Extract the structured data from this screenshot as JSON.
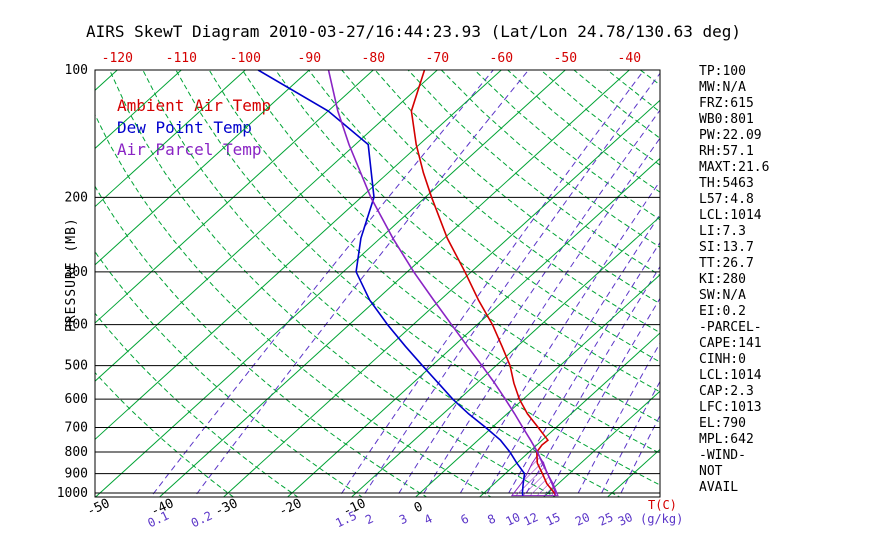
{
  "title": "AIRS SkewT Diagram 2010-03-27/16:44:23.93 (Lat/Lon 24.78/130.63 deg)",
  "legend": {
    "ambient": "Ambient Air Temp",
    "dew": "Dew Point Temp",
    "parcel": "Air Parcel Temp"
  },
  "ylabel": "PRESSURE (MB)",
  "xlabel_temp": "T(C)",
  "xlabel_ratio": "(g/kg)",
  "stats": {
    "lines": [
      "TP:100",
      "MW:N/A",
      "FRZ:615",
      "WB0:801",
      "PW:22.09",
      "RH:57.1",
      "MAXT:21.6",
      "TH:5463",
      "L57:4.8",
      "LCL:1014",
      "LI:7.3",
      "SI:13.7",
      "TT:26.7",
      "KI:280",
      "SW:N/A",
      "EI:0.2",
      "-PARCEL-",
      "CAPE:141",
      "CINH:0",
      "LCL:1014",
      "CAP:2.3",
      "LFC:1013",
      "EL:790",
      "MPL:642",
      "-WIND-",
      "NOT",
      "AVAIL"
    ]
  },
  "colors": {
    "red": "#d40000",
    "green": "#00a335",
    "blue": "#0000cc",
    "parcel": "#8a24c4",
    "mixing": "#5b35c8",
    "black": "#000000"
  },
  "chart_data": {
    "type": "line",
    "title": "AIRS SkewT Diagram 2010-03-27/16:44:23.93 (Lat/Lon 24.78/130.63 deg)",
    "xlabel": "T(C)",
    "ylabel": "PRESSURE (MB)",
    "y_axis": {
      "scale": "log",
      "ticks": [
        100,
        200,
        300,
        400,
        500,
        600,
        700,
        800,
        900,
        1000
      ],
      "range": [
        100,
        1022
      ]
    },
    "x_axis": {
      "top_ticks": [
        -120,
        -110,
        -100,
        -90,
        -80,
        -70,
        -60,
        -50,
        -40
      ],
      "bottom_ticks": [
        -50,
        -40,
        -30,
        -20,
        -10,
        0
      ]
    },
    "isotherms_c": {
      "min": -120,
      "max": 40,
      "step": 10
    },
    "dry_adiabats_c": {
      "min": -30,
      "max": 190,
      "step": 10
    },
    "mixing_ratio_lines_g_kg": [
      0.1,
      0.2,
      1.5,
      2,
      3,
      4,
      6,
      8,
      10,
      12,
      15,
      20,
      25,
      30
    ],
    "series": [
      {
        "name": "Ambient Air Temp",
        "color": "#d40000",
        "points": [
          [
            1014,
            21.6
          ],
          [
            1000,
            21.0
          ],
          [
            950,
            18.2
          ],
          [
            900,
            15.8
          ],
          [
            850,
            13.2
          ],
          [
            800,
            11.2
          ],
          [
            770,
            10.8
          ],
          [
            750,
            10.9
          ],
          [
            700,
            7.2
          ],
          [
            650,
            3.2
          ],
          [
            600,
            -0.6
          ],
          [
            550,
            -4.2
          ],
          [
            500,
            -7.8
          ],
          [
            450,
            -12.4
          ],
          [
            400,
            -17.6
          ],
          [
            350,
            -24.0
          ],
          [
            300,
            -31.0
          ],
          [
            250,
            -39.5
          ],
          [
            200,
            -49.0
          ],
          [
            175,
            -54.5
          ],
          [
            150,
            -60.5
          ],
          [
            125,
            -67.0
          ],
          [
            100,
            -72.0
          ]
        ]
      },
      {
        "name": "Dew Point Temp",
        "color": "#0000cc",
        "points": [
          [
            1014,
            16.5
          ],
          [
            1000,
            16.0
          ],
          [
            950,
            14.5
          ],
          [
            900,
            13.0
          ],
          [
            850,
            10.0
          ],
          [
            800,
            7.0
          ],
          [
            750,
            3.5
          ],
          [
            700,
            -1.0
          ],
          [
            650,
            -6.0
          ],
          [
            600,
            -11.0
          ],
          [
            550,
            -16.0
          ],
          [
            500,
            -21.5
          ],
          [
            450,
            -27.5
          ],
          [
            400,
            -34.0
          ],
          [
            350,
            -41.0
          ],
          [
            300,
            -48.0
          ],
          [
            250,
            -53.0
          ],
          [
            200,
            -58.0
          ],
          [
            150,
            -68.0
          ],
          [
            125,
            -80.0
          ],
          [
            100,
            -98.0
          ]
        ]
      },
      {
        "name": "Air Parcel Temp",
        "color": "#8a24c4",
        "points": [
          [
            1014,
            21.6
          ],
          [
            1000,
            21.2
          ],
          [
            950,
            19.0
          ],
          [
            900,
            16.6
          ],
          [
            850,
            14.0
          ],
          [
            800,
            11.3
          ],
          [
            790,
            10.7
          ],
          [
            750,
            8.2
          ],
          [
            700,
            4.8
          ],
          [
            650,
            1.2
          ],
          [
            600,
            -2.8
          ],
          [
            550,
            -7.2
          ],
          [
            500,
            -12.2
          ],
          [
            450,
            -17.8
          ],
          [
            400,
            -24.0
          ],
          [
            350,
            -31.0
          ],
          [
            300,
            -39.0
          ],
          [
            250,
            -48.0
          ],
          [
            200,
            -58.5
          ],
          [
            150,
            -71.0
          ],
          [
            125,
            -78.5
          ],
          [
            100,
            -87.0
          ]
        ]
      }
    ],
    "cape_area": {
      "points": [
        [
          1014,
          22.0
        ],
        [
          950,
          19.2
        ],
        [
          900,
          16.6
        ],
        [
          850,
          14.2
        ],
        [
          810,
          11.8
        ],
        [
          850,
          12.4
        ],
        [
          900,
          13.4
        ],
        [
          950,
          14.2
        ],
        [
          1014,
          14.8
        ]
      ]
    }
  }
}
